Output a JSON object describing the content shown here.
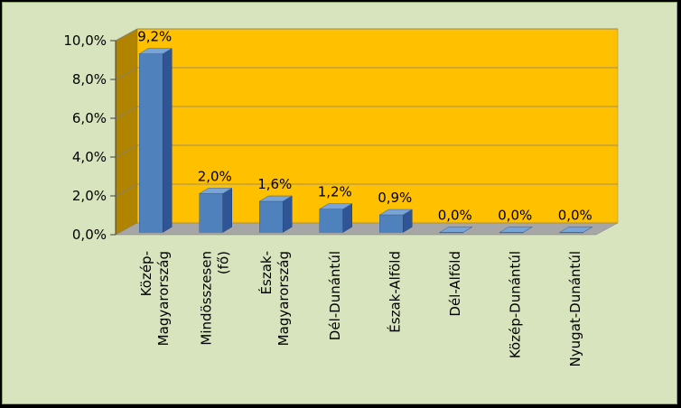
{
  "chart_data": {
    "type": "bar",
    "categories": [
      [
        "Közép-",
        "Magyarország"
      ],
      [
        "Mindösszesen",
        "(fő)"
      ],
      [
        "Észak-",
        "Magyarország"
      ],
      [
        "Dél-Dunántúl"
      ],
      [
        "Észak-Alföld"
      ],
      [
        "Dél-Alföld"
      ],
      [
        "Közép-Dunántúl"
      ],
      [
        "Nyugat-Dunántúl"
      ]
    ],
    "values": [
      9.2,
      2.0,
      1.6,
      1.2,
      0.9,
      0.0,
      0.0,
      0.0
    ],
    "data_labels": [
      "9,2%",
      "2,0%",
      "1,6%",
      "1,2%",
      "0,9%",
      "0,0%",
      "0,0%",
      "0,0%"
    ],
    "ylim": [
      0,
      10
    ],
    "yticks": [
      0,
      2,
      4,
      6,
      8,
      10
    ],
    "ytick_labels": [
      "0,0%",
      "2,0%",
      "4,0%",
      "6,0%",
      "8,0%",
      "10,0%"
    ],
    "title": "",
    "xlabel": "",
    "ylabel": "",
    "grid": true,
    "legend": "none",
    "style": "3d-column",
    "colors": {
      "outer_background": "#d7e4bd",
      "plot_background": "#ffc000",
      "side_wall": "#b08400",
      "floor": "#a6a6a6",
      "bar_front": "#4f81bd",
      "bar_side": "#2f5597",
      "bar_top": "#7aa3d6",
      "gridline": "#7f7f7f"
    }
  }
}
